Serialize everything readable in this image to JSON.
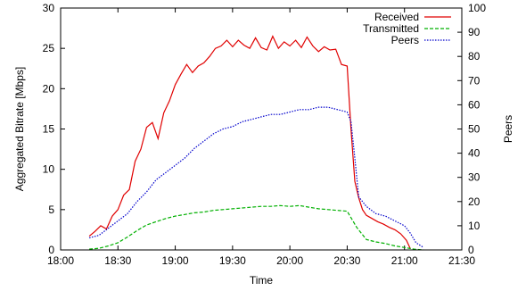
{
  "chart_data": {
    "type": "line",
    "xlabel": "Time",
    "ylabel": "Aggregated Bitrate [Mbps]",
    "y2label": "Peers",
    "xlim": [
      0,
      210
    ],
    "ylim": [
      0,
      30
    ],
    "y2lim": [
      0,
      100
    ],
    "x_ticks": [
      "18:00",
      "18:30",
      "19:00",
      "19:30",
      "20:00",
      "20:30",
      "21:00",
      "21:30"
    ],
    "y_ticks": [
      0,
      5,
      10,
      15,
      20,
      25,
      30
    ],
    "y2_ticks": [
      0,
      10,
      20,
      30,
      40,
      50,
      60,
      70,
      80,
      90,
      100
    ],
    "x_unit": "minutes after 18:00",
    "legend_position": "top-right",
    "grid": false,
    "series": [
      {
        "name": "Received",
        "axis": "left",
        "color": "#e00000",
        "dash": "solid",
        "x": [
          15,
          18,
          21,
          24,
          27,
          30,
          33,
          36,
          39,
          42,
          45,
          48,
          51,
          54,
          57,
          60,
          63,
          66,
          69,
          72,
          75,
          78,
          81,
          84,
          87,
          90,
          93,
          96,
          99,
          102,
          105,
          108,
          111,
          114,
          117,
          120,
          123,
          126,
          129,
          132,
          135,
          138,
          141,
          144,
          147,
          150,
          152,
          154,
          156,
          158,
          160,
          163,
          166,
          169,
          172,
          175,
          178,
          181,
          183
        ],
        "values": [
          1.7,
          2.3,
          3.0,
          2.6,
          4.2,
          5.0,
          6.8,
          7.5,
          11.0,
          12.5,
          15.2,
          15.8,
          13.8,
          17.0,
          18.5,
          20.5,
          21.8,
          23.0,
          22.0,
          22.8,
          23.2,
          24.0,
          25.0,
          25.3,
          26.0,
          25.2,
          26.0,
          25.4,
          25.0,
          26.3,
          25.1,
          24.8,
          26.5,
          25.0,
          25.8,
          25.3,
          26.0,
          25.1,
          26.4,
          25.3,
          24.6,
          25.2,
          24.8,
          24.9,
          23.0,
          22.8,
          15.0,
          8.5,
          6.5,
          5.0,
          4.3,
          3.9,
          3.5,
          3.2,
          2.8,
          2.5,
          2.0,
          1.2,
          0.2
        ]
      },
      {
        "name": "Transmitted",
        "axis": "left",
        "color": "#00b000",
        "dash": "dashed",
        "x": [
          15,
          20,
          25,
          30,
          35,
          40,
          45,
          50,
          55,
          60,
          65,
          70,
          75,
          80,
          85,
          90,
          95,
          100,
          105,
          110,
          115,
          120,
          125,
          130,
          135,
          140,
          145,
          150,
          155,
          160,
          165,
          170,
          175,
          180,
          185,
          190
        ],
        "values": [
          0.1,
          0.2,
          0.5,
          0.9,
          1.6,
          2.4,
          3.1,
          3.5,
          3.9,
          4.2,
          4.4,
          4.6,
          4.7,
          4.9,
          5.0,
          5.1,
          5.2,
          5.3,
          5.4,
          5.4,
          5.5,
          5.4,
          5.5,
          5.3,
          5.1,
          5.0,
          4.9,
          4.8,
          2.8,
          1.3,
          1.0,
          0.8,
          0.5,
          0.3,
          0.1,
          0.0
        ]
      },
      {
        "name": "Peers",
        "axis": "right",
        "color": "#0000cc",
        "dash": "dotted",
        "x": [
          15,
          20,
          25,
          30,
          35,
          40,
          45,
          50,
          55,
          60,
          65,
          70,
          75,
          80,
          85,
          90,
          95,
          100,
          105,
          110,
          115,
          120,
          125,
          130,
          135,
          140,
          145,
          150,
          152,
          154,
          156,
          160,
          165,
          170,
          175,
          180,
          183,
          186,
          190
        ],
        "values": [
          5,
          6,
          9,
          12,
          15,
          20,
          24,
          29,
          32,
          35,
          38,
          42,
          45,
          48,
          50,
          51,
          53,
          54,
          55,
          56,
          56,
          57,
          58,
          58,
          59,
          59,
          58,
          57,
          53,
          38,
          22,
          18,
          15,
          14,
          12,
          10,
          7,
          3,
          1
        ]
      }
    ]
  }
}
